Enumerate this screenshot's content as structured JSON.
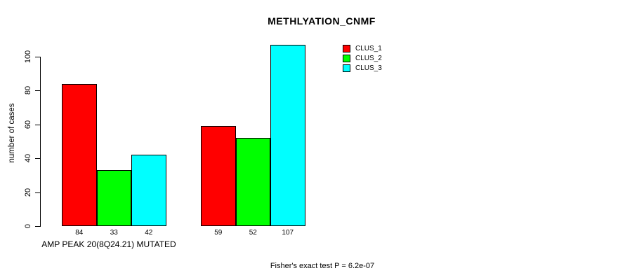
{
  "chart_data": {
    "type": "bar",
    "title": "METHLYATION_CNMF",
    "xlabel": "AMP PEAK 20(8Q24.21) MUTATED",
    "ylabel": "number of cases",
    "annotation": "Fisher's exact test P = 6.2e-07",
    "ylim": [
      0,
      107
    ],
    "yticks": [
      0,
      20,
      40,
      60,
      80,
      100
    ],
    "grid": false,
    "legend_position": "top-right",
    "categories": [
      "AMP PEAK 20(8Q24.21) MUTATED",
      ""
    ],
    "series": [
      {
        "name": "CLUS_1",
        "color": "#ff0000",
        "values": [
          84,
          59
        ]
      },
      {
        "name": "CLUS_2",
        "color": "#00ff00",
        "values": [
          33,
          52
        ]
      },
      {
        "name": "CLUS_3",
        "color": "#00ffff",
        "values": [
          42,
          107
        ]
      }
    ],
    "bar_value_labels": [
      [
        84,
        33,
        42
      ],
      [
        59,
        52,
        107
      ]
    ],
    "axis_color": "#000000",
    "bar_border_color": "#000000",
    "background_color": "#ffffff"
  }
}
